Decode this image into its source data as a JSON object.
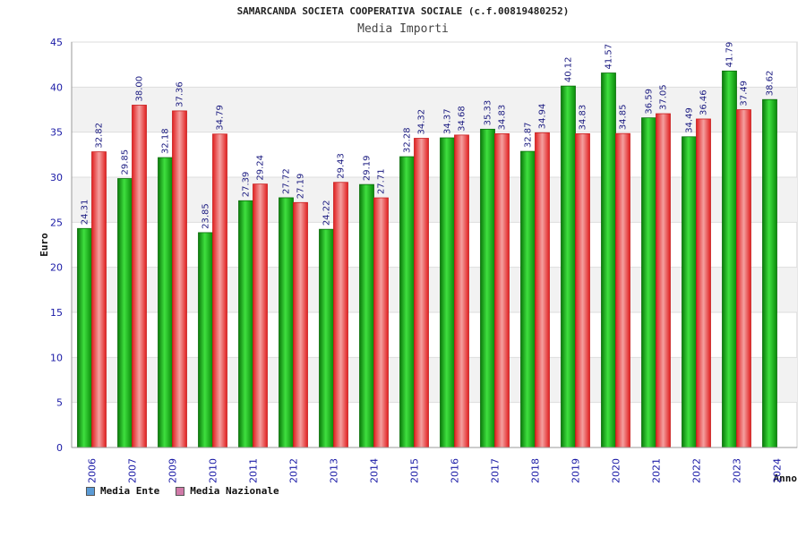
{
  "chart_data": {
    "type": "bar",
    "title": "SAMARCANDA SOCIETA COOPERATIVA SOCIALE (c.f.00819480252)",
    "subtitle": "Media Importi",
    "xlabel": "Anno",
    "ylabel": "Euro",
    "ylim": [
      0,
      45
    ],
    "yticks": [
      0,
      5,
      10,
      15,
      20,
      25,
      30,
      35,
      40,
      45
    ],
    "grid": true,
    "categories": [
      "2006",
      "2007",
      "2009",
      "2010",
      "2011",
      "2012",
      "2013",
      "2014",
      "2015",
      "2016",
      "2017",
      "2018",
      "2019",
      "2020",
      "2021",
      "2022",
      "2023",
      "2024"
    ],
    "series": [
      {
        "name": "Media Ente",
        "legend_color": "#5b9bd5",
        "bar_color": "#1db01d",
        "values": [
          24.31,
          29.85,
          32.18,
          23.85,
          27.39,
          27.72,
          24.22,
          29.19,
          32.28,
          34.37,
          35.33,
          32.87,
          40.12,
          41.57,
          36.59,
          34.49,
          41.79,
          38.62
        ]
      },
      {
        "name": "Media Nazionale",
        "legend_color": "#d07aa8",
        "bar_color": "#e83a3a",
        "values": [
          32.82,
          38.0,
          37.36,
          34.79,
          29.24,
          27.19,
          29.43,
          27.71,
          34.32,
          34.68,
          34.83,
          34.94,
          34.83,
          34.85,
          37.05,
          36.46,
          37.49,
          null
        ]
      }
    ],
    "legend_position": "bottom-left"
  }
}
